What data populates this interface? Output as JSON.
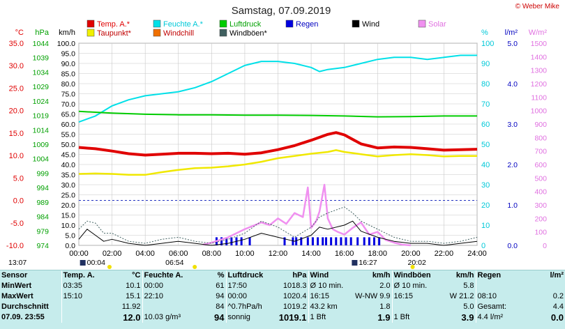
{
  "chart_data": {
    "type": "line",
    "title": "Samstag, 07.09.2019",
    "copyright": "© Weber Mike",
    "x_ticks": [
      "00:00",
      "02:00",
      "04:00",
      "06:00",
      "08:00",
      "10:00",
      "12:00",
      "14:00",
      "16:00",
      "18:00",
      "20:00",
      "22:00",
      "24:00"
    ],
    "xlim_hours": [
      0,
      24
    ],
    "axes": {
      "temp": {
        "unit": "°C",
        "ticks": [
          "35.0",
          "30.0",
          "25.0",
          "20.0",
          "15.0",
          "10.0",
          "5.0",
          "0.0",
          "-5.0",
          "-10.0"
        ],
        "range": [
          -10,
          35
        ],
        "color": "#e00000"
      },
      "pressure": {
        "unit": "hPa",
        "ticks": [
          "1044",
          "1039",
          "1034",
          "1029",
          "1024",
          "1019",
          "1014",
          "1009",
          "1004",
          "999",
          "994",
          "989",
          "984",
          "979",
          "974"
        ],
        "range": [
          974,
          1044
        ],
        "color": "#00a000"
      },
      "wind": {
        "unit": "km/h",
        "ticks": [
          "100.0",
          "95.0",
          "90.0",
          "85.0",
          "80.0",
          "75.0",
          "70.0",
          "65.0",
          "60.0",
          "55.0",
          "50.0",
          "45.0",
          "40.0",
          "35.0",
          "30.0",
          "25.0",
          "20.0",
          "15.0",
          "10.0",
          "5.0",
          "0.0"
        ],
        "range": [
          0,
          100
        ],
        "color": "#000000"
      },
      "humidity": {
        "unit": "%",
        "ticks": [
          "100",
          "90",
          "80",
          "70",
          "60",
          "50",
          "40",
          "30",
          "20",
          "10",
          "0"
        ],
        "range": [
          0,
          100
        ],
        "color": "#00c8d8"
      },
      "rain": {
        "unit": "l/m²",
        "ticks": [
          "5.0",
          "4.0",
          "3.0",
          "2.0",
          "1.0",
          "0.0"
        ],
        "range": [
          0,
          5
        ],
        "color": "#0000c0"
      },
      "solar": {
        "unit": "W/m²",
        "ticks": [
          "1500",
          "1400",
          "1300",
          "1200",
          "1100",
          "1000",
          "900",
          "800",
          "700",
          "600",
          "500",
          "400",
          "300",
          "200",
          "100",
          "0"
        ],
        "range": [
          0,
          1500
        ],
        "color": "#e070e0"
      }
    },
    "legend": [
      {
        "label": "Temp. A.*",
        "color": "#e00000"
      },
      {
        "label": "Feuchte A.*",
        "color": "#00e0e8"
      },
      {
        "label": "Luftdruck",
        "color": "#00cc00"
      },
      {
        "label": "Regen",
        "color": "#0000e0"
      },
      {
        "label": "Wind",
        "color": "#000000"
      },
      {
        "label": "Solar",
        "color": "#f090f0"
      },
      {
        "label": "Taupunkt*",
        "color": "#f0f000"
      },
      {
        "label": "Windchill",
        "color": "#f07000"
      },
      {
        "label": "Windböen*",
        "color": "#406060"
      }
    ],
    "series": [
      {
        "name": "Temp. A.*",
        "axis": "temp",
        "color": "#e00000",
        "x": [
          0,
          1,
          2,
          3,
          4,
          5,
          6,
          7,
          8,
          9,
          10,
          11,
          12,
          13,
          14,
          15,
          15.5,
          16,
          17,
          18,
          19,
          20,
          21,
          22,
          23,
          24
        ],
        "y": [
          11.8,
          11.5,
          11.0,
          10.4,
          10.1,
          10.3,
          10.5,
          10.5,
          10.4,
          10.5,
          10.3,
          10.6,
          11.3,
          12.2,
          13.4,
          14.7,
          15.1,
          14.6,
          12.6,
          11.7,
          11.9,
          11.8,
          11.5,
          11.2,
          11.3,
          11.4
        ]
      },
      {
        "name": "Taupunkt*",
        "axis": "temp",
        "color": "#f0e800",
        "x": [
          0,
          1,
          2,
          3,
          4,
          5,
          6,
          7,
          8,
          9,
          10,
          11,
          12,
          13,
          14,
          15,
          15.5,
          16,
          17,
          18,
          19,
          20,
          21,
          22,
          23,
          24
        ],
        "y": [
          5.9,
          6.0,
          5.9,
          5.7,
          5.7,
          6.3,
          6.8,
          7.2,
          7.3,
          7.6,
          8.0,
          8.6,
          9.4,
          9.9,
          10.4,
          10.8,
          11.2,
          10.8,
          10.3,
          9.8,
          10.1,
          10.3,
          10.1,
          9.8,
          9.9,
          9.9
        ]
      },
      {
        "name": "Feuchte A.*",
        "axis": "humidity",
        "color": "#00e0e8",
        "x": [
          0,
          1,
          2,
          3,
          4,
          5,
          6,
          7,
          8,
          9,
          10,
          11,
          12,
          13,
          14,
          14.5,
          15,
          16,
          17,
          18,
          19,
          20,
          21,
          22,
          23,
          24
        ],
        "y": [
          61,
          64,
          69,
          72,
          74,
          75,
          76,
          78,
          81,
          85,
          89,
          91,
          91,
          90,
          88,
          86,
          87,
          88,
          90,
          92,
          93,
          93,
          92,
          93,
          94,
          94
        ]
      },
      {
        "name": "Luftdruck",
        "axis": "pressure",
        "color": "#00cc00",
        "x": [
          0,
          2,
          4,
          6,
          8,
          10,
          12,
          14,
          16,
          18,
          20,
          22,
          24
        ],
        "y": [
          1020.4,
          1019.8,
          1019.4,
          1019.2,
          1019.2,
          1019.1,
          1019.1,
          1019.0,
          1018.8,
          1018.5,
          1018.6,
          1018.8,
          1018.8
        ]
      },
      {
        "name": "Solar",
        "axis": "solar",
        "color": "#f090f0",
        "x": [
          7.5,
          8,
          9,
          10,
          11,
          11.5,
          12,
          12.5,
          13,
          13.5,
          13.8,
          14,
          14.3,
          14.5,
          14.8,
          15,
          15.3,
          15.6,
          16,
          16.5,
          17,
          17.5,
          18,
          18.5,
          19,
          19.5,
          20
        ],
        "y": [
          5,
          20,
          60,
          120,
          170,
          150,
          200,
          160,
          240,
          210,
          430,
          130,
          180,
          250,
          450,
          200,
          120,
          100,
          80,
          130,
          170,
          80,
          100,
          40,
          20,
          5,
          0
        ]
      },
      {
        "name": "Wind",
        "axis": "wind",
        "color": "#000000",
        "x": [
          0,
          0.5,
          1,
          1.5,
          2,
          3,
          4,
          5,
          6,
          7,
          8,
          9,
          10,
          11,
          12,
          13,
          14,
          14.5,
          15,
          16,
          16.5,
          17,
          18,
          19,
          20,
          21,
          22,
          23,
          24
        ],
        "y": [
          3,
          8,
          5,
          2,
          3,
          1,
          0,
          1,
          2,
          1,
          0,
          1,
          3,
          6,
          4,
          2,
          5,
          9,
          8,
          10,
          12,
          7,
          4,
          2,
          1,
          1,
          0,
          1,
          2
        ]
      },
      {
        "name": "Windböen*",
        "axis": "wind",
        "color": "#406060",
        "x": [
          0,
          0.5,
          1,
          1.5,
          2,
          3,
          4,
          5,
          6,
          7,
          8,
          9,
          10,
          11,
          12,
          13,
          14,
          14.5,
          15,
          16,
          16.5,
          17,
          18,
          19,
          20,
          21,
          22,
          23,
          24
        ],
        "y": [
          8,
          12,
          11,
          6,
          6,
          2,
          1,
          3,
          4,
          2,
          1,
          3,
          6,
          12,
          9,
          4,
          9,
          14,
          16,
          19,
          16,
          12,
          8,
          4,
          2,
          2,
          1,
          2,
          4
        ]
      }
    ],
    "rain_bars_hours": [
      8.3,
      8.6,
      8.9,
      9.2,
      9.5,
      9.8,
      10.3,
      12.4,
      12.9,
      13.1,
      13.4,
      13.8,
      14.1,
      14.4,
      14.7,
      14.9,
      15.2,
      15.5,
      15.8,
      16.1,
      16.4,
      16.8,
      17.2,
      17.5,
      17.8,
      18.1
    ],
    "rain_bar_value": 0.2,
    "x_markers": [
      {
        "label": "13:07",
        "hour": 0,
        "marker": "sun"
      },
      {
        "label": "00:04",
        "hour": 0.07,
        "marker": "moon"
      },
      {
        "label": "06:54",
        "hour": 6.9,
        "marker": "sun"
      },
      {
        "label": "16:27",
        "hour": 16.45,
        "marker": "moon"
      },
      {
        "label": "20:02",
        "hour": 20.03,
        "marker": "sun"
      }
    ]
  },
  "stats": {
    "header": [
      "Sensor",
      "Temp. A.",
      "°C",
      "Feuchte A.",
      "%",
      "Luftdruck",
      "hPa",
      "Wind",
      "km/h",
      "Windböen",
      "km/h",
      "Regen",
      "l/m²"
    ],
    "rows": [
      [
        "MinWert",
        "03:35",
        "10.1",
        "00:00",
        "61",
        "17:50",
        "1018.3",
        "Ø 10 min.",
        "2.0",
        "Ø 10 min.",
        "5.8",
        "",
        ""
      ],
      [
        "MaxWert",
        "15:10",
        "15.1",
        "22:10",
        "94",
        "00:00",
        "1020.4",
        "16:15",
        "W-NW 9.9",
        "16:15",
        "W 21.2",
        "08:10",
        "0.2"
      ],
      [
        "Durchschnitt",
        "",
        "11.92",
        "",
        "84",
        "^0.7hPa/h",
        "1019.2",
        "43.2 km",
        "1.8",
        "",
        "5.0",
        "Gesamt:",
        "4.4"
      ],
      [
        "07.09. 23:55",
        "",
        "12.0",
        "10.03 g/m³",
        "94",
        "sonnig",
        "1019.1",
        "1 Bft",
        "1.9",
        "1 Bft",
        "3.9",
        "4.4 l/m²",
        "0.0"
      ]
    ]
  }
}
